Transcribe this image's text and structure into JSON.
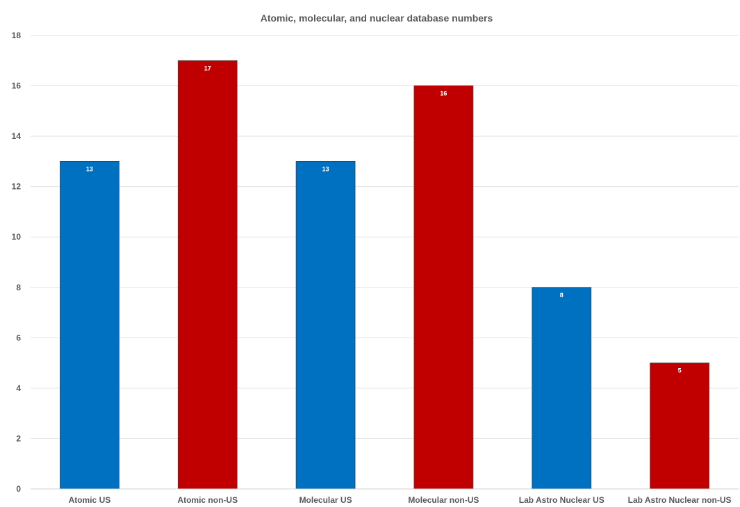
{
  "chart_data": {
    "type": "bar",
    "title": "Atomic, molecular, and nuclear database numbers",
    "xlabel": "",
    "ylabel": "",
    "categories": [
      "Atomic US",
      "Atomic non-US",
      "Molecular US",
      "Molecular non-US",
      "Lab Astro Nuclear US",
      "Lab Astro Nuclear non-US"
    ],
    "values": [
      13,
      17,
      13,
      16,
      8,
      5
    ],
    "bar_colors": [
      "#0070c0",
      "#c00000",
      "#0070c0",
      "#c00000",
      "#0070c0",
      "#c00000"
    ],
    "ylim": [
      0,
      18
    ],
    "yticks": [
      "0",
      "2",
      "4",
      "6",
      "8",
      "10",
      "12",
      "14",
      "16",
      "18"
    ],
    "data_labels": [
      "13",
      "17",
      "13",
      "16",
      "8",
      "5"
    ],
    "grid": true,
    "legend": "none"
  }
}
